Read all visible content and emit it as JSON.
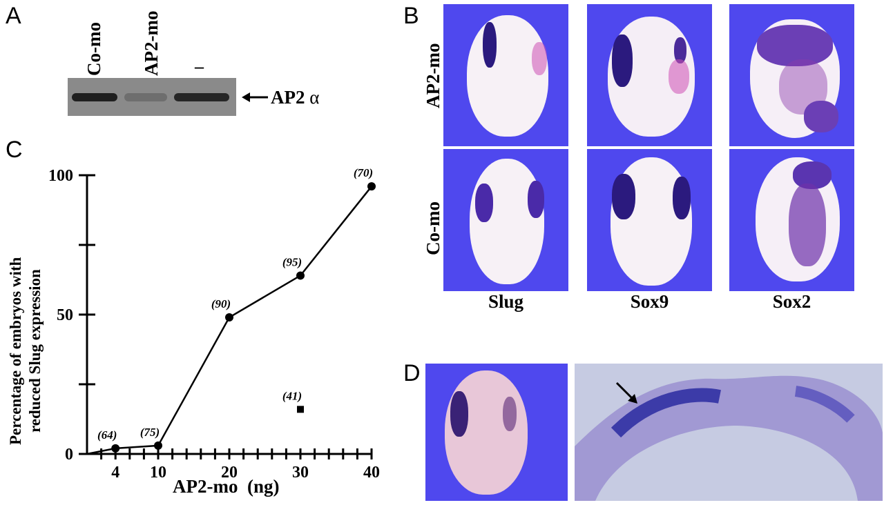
{
  "panels": {
    "a": {
      "letter": "A",
      "lane_labels": [
        "Co-mo",
        "AP2-mo",
        "–"
      ],
      "band_label": "AP2",
      "band_label_greek": "α",
      "lane_band_intensity": [
        1.0,
        0.25,
        0.95
      ]
    },
    "b": {
      "letter": "B",
      "row_labels": [
        "AP2-mo",
        "Co-mo"
      ],
      "column_labels": [
        "Slug",
        "Sox9",
        "Sox2"
      ]
    },
    "c": {
      "letter": "C"
    },
    "d": {
      "letter": "D"
    }
  },
  "chart_data": {
    "type": "line",
    "xlabel": "AP2-mo  (ng)",
    "ylabel_line1": "Percentage of embryos with",
    "ylabel_line2": "reduced Slug expression",
    "x_ticks": [
      4,
      10,
      20,
      30,
      40
    ],
    "y_ticks": [
      0,
      50,
      100
    ],
    "xlim": [
      0,
      40
    ],
    "ylim": [
      0,
      100
    ],
    "series": [
      {
        "points": [
          {
            "x": 0,
            "y": 0,
            "n": ""
          },
          {
            "x": 4,
            "y": 2,
            "n": "(64)"
          },
          {
            "x": 10,
            "y": 3,
            "n": "(75)"
          },
          {
            "x": 20,
            "y": 49,
            "n": "(90)"
          },
          {
            "x": 30,
            "y": 64,
            "n": "(95)"
          },
          {
            "x": 40,
            "y": 96,
            "n": "(70)"
          }
        ]
      },
      {
        "marker": "square",
        "points": [
          {
            "x": 30,
            "y": 16,
            "n": "(41)"
          }
        ]
      }
    ]
  },
  "colors": {
    "background_blue": "#4f48ee",
    "stain_purple": "#2b1a7e",
    "embryo_white": "#f7f1f6",
    "blot_gray": "#8a8a8a"
  }
}
